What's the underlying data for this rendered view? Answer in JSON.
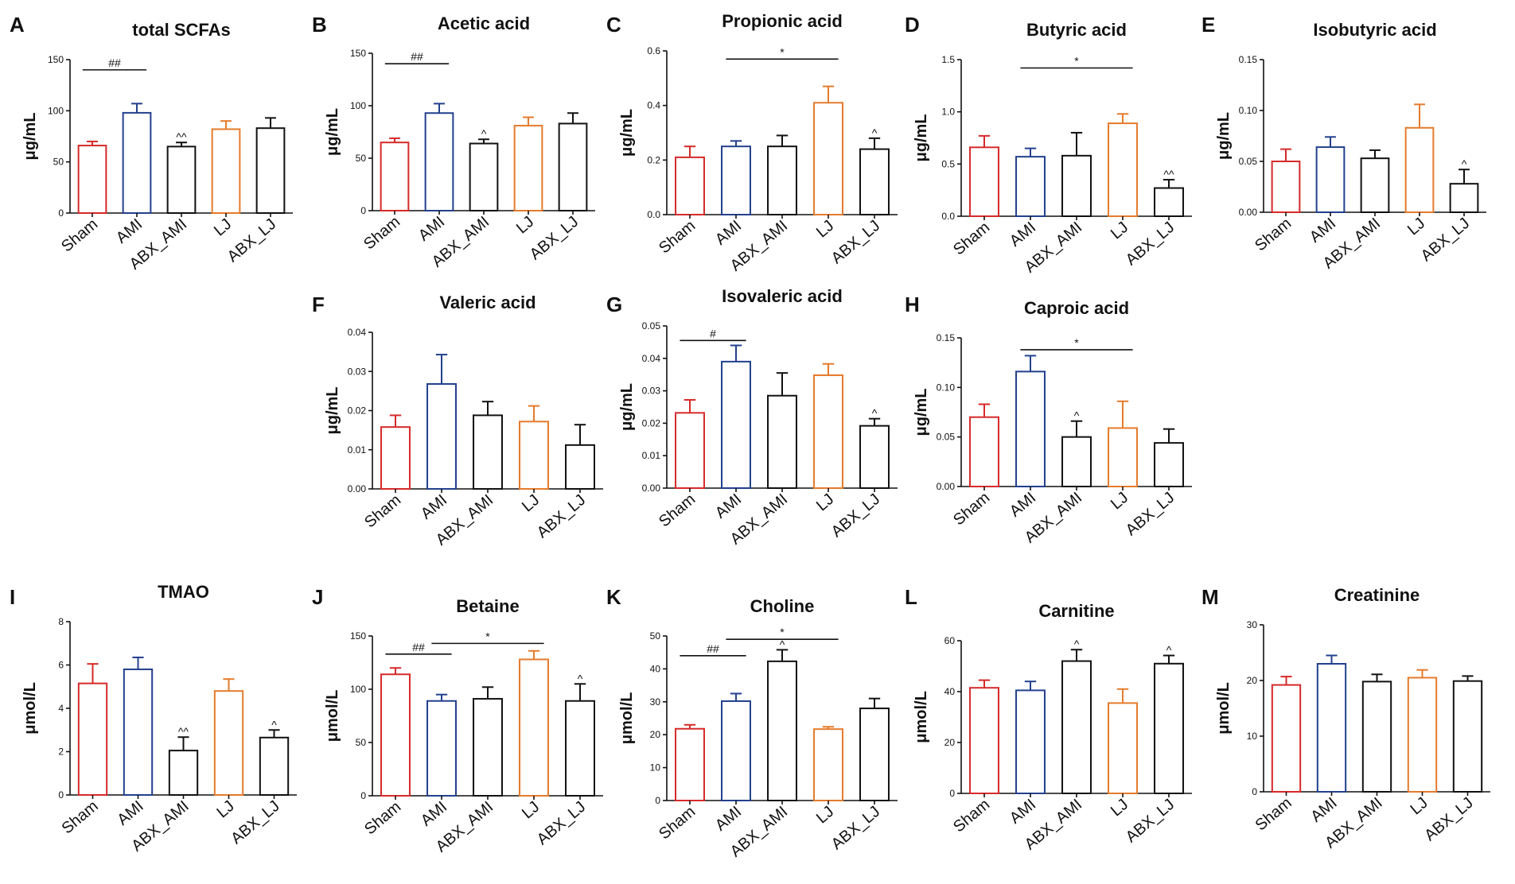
{
  "colors": {
    "Sham": "#d62a2a",
    "AMI": "#23408e",
    "ABX_AMI": "#111111",
    "LJ": "#e57b2c",
    "ABX_LJ": "#111111",
    "axis": "#111111"
  },
  "chart_data": [
    {
      "panel": "A",
      "type": "bar",
      "title": "total SCFAs",
      "ylabel": "μg/mL",
      "categories": [
        "Sham",
        "AMI",
        "ABX_AMI",
        "LJ",
        "ABX_LJ"
      ],
      "values": [
        66,
        98,
        65,
        82,
        83
      ],
      "errors": [
        4,
        9,
        4,
        8,
        10
      ],
      "ylim": [
        0,
        150
      ],
      "yticks": [
        "0",
        "50",
        "100",
        "150"
      ],
      "annotations": [
        {
          "text": "##",
          "from": 0,
          "to": 1,
          "level": 140
        },
        {
          "text": "^^",
          "at": 2
        }
      ]
    },
    {
      "panel": "B",
      "type": "bar",
      "title": "Acetic acid",
      "ylabel": "μg/mL",
      "categories": [
        "Sham",
        "AMI",
        "ABX_AMI",
        "LJ",
        "ABX_LJ"
      ],
      "values": [
        65,
        93,
        64,
        81,
        83
      ],
      "errors": [
        4,
        9,
        4,
        8,
        10
      ],
      "ylim": [
        0,
        150
      ],
      "yticks": [
        "0",
        "50",
        "100",
        "150"
      ],
      "annotations": [
        {
          "text": "##",
          "from": 0,
          "to": 1,
          "level": 140
        },
        {
          "text": "^",
          "at": 2
        }
      ]
    },
    {
      "panel": "C",
      "type": "bar",
      "title": "Propionic acid",
      "ylabel": "μg/mL",
      "categories": [
        "Sham",
        "AMI",
        "ABX_AMI",
        "LJ",
        "ABX_LJ"
      ],
      "values": [
        0.21,
        0.25,
        0.25,
        0.41,
        0.24
      ],
      "errors": [
        0.04,
        0.02,
        0.04,
        0.06,
        0.04
      ],
      "ylim": [
        0,
        0.6
      ],
      "yticks": [
        "0.0",
        "0.2",
        "0.4",
        "0.6"
      ],
      "annotations": [
        {
          "text": "*",
          "from": 1,
          "to": 3,
          "level": 0.57
        },
        {
          "text": "^",
          "at": 4
        }
      ]
    },
    {
      "panel": "D",
      "type": "bar",
      "title": "Butyric acid",
      "ylabel": "μg/mL",
      "categories": [
        "Sham",
        "AMI",
        "ABX_AMI",
        "LJ",
        "ABX_LJ"
      ],
      "values": [
        0.66,
        0.57,
        0.58,
        0.89,
        0.27
      ],
      "errors": [
        0.11,
        0.08,
        0.22,
        0.09,
        0.08
      ],
      "ylim": [
        0,
        1.5
      ],
      "yticks": [
        "0.0",
        "0.5",
        "1.0",
        "1.5"
      ],
      "annotations": [
        {
          "text": "*",
          "from": 1,
          "to": 3,
          "level": 1.42
        },
        {
          "text": "^^",
          "at": 4
        }
      ]
    },
    {
      "panel": "E",
      "type": "bar",
      "title": "Isobutyric acid",
      "ylabel": "μg/mL",
      "categories": [
        "Sham",
        "AMI",
        "ABX_AMI",
        "LJ",
        "ABX_LJ"
      ],
      "values": [
        0.05,
        0.064,
        0.053,
        0.083,
        0.028
      ],
      "errors": [
        0.012,
        0.01,
        0.008,
        0.023,
        0.014
      ],
      "ylim": [
        0,
        0.15
      ],
      "yticks": [
        "0.00",
        "0.05",
        "0.10",
        "0.15"
      ],
      "annotations": [
        {
          "text": "^",
          "at": 4
        }
      ]
    },
    {
      "panel": "F",
      "type": "bar",
      "title": "Valeric acid",
      "ylabel": "μg/mL",
      "categories": [
        "Sham",
        "AMI",
        "ABX_AMI",
        "LJ",
        "ABX_LJ"
      ],
      "values": [
        0.0158,
        0.0268,
        0.0188,
        0.0172,
        0.0112
      ],
      "errors": [
        0.003,
        0.0075,
        0.0035,
        0.004,
        0.0052
      ],
      "ylim": [
        0,
        0.04
      ],
      "yticks": [
        "0.00",
        "0.01",
        "0.02",
        "0.03",
        "0.04"
      ],
      "annotations": []
    },
    {
      "panel": "G",
      "type": "bar",
      "title": "Isovaleric acid",
      "ylabel": "μg/mL",
      "categories": [
        "Sham",
        "AMI",
        "ABX_AMI",
        "LJ",
        "ABX_LJ"
      ],
      "values": [
        0.0232,
        0.039,
        0.0285,
        0.0348,
        0.0192
      ],
      "errors": [
        0.004,
        0.005,
        0.007,
        0.0035,
        0.0022
      ],
      "ylim": [
        0,
        0.05
      ],
      "yticks": [
        "0.00",
        "0.01",
        "0.02",
        "0.03",
        "0.04",
        "0.05"
      ],
      "annotations": [
        {
          "text": "#",
          "from": 0,
          "to": 1,
          "level": 0.0455
        },
        {
          "text": "^",
          "at": 4
        }
      ]
    },
    {
      "panel": "H",
      "type": "bar",
      "title": "Caproic acid",
      "ylabel": "μg/mL",
      "categories": [
        "Sham",
        "AMI",
        "ABX_AMI",
        "LJ",
        "ABX_LJ"
      ],
      "values": [
        0.07,
        0.116,
        0.05,
        0.059,
        0.044
      ],
      "errors": [
        0.013,
        0.016,
        0.016,
        0.027,
        0.014
      ],
      "ylim": [
        0,
        0.15
      ],
      "yticks": [
        "0.00",
        "0.05",
        "0.10",
        "0.15"
      ],
      "annotations": [
        {
          "text": "*",
          "from": 1,
          "to": 3,
          "level": 0.138
        },
        {
          "text": "^",
          "at": 2
        }
      ]
    },
    {
      "panel": "I",
      "type": "bar",
      "title": "TMAO",
      "ylabel": "μmol/L",
      "categories": [
        "Sham",
        "AMI",
        "ABX_AMI",
        "LJ",
        "ABX_LJ"
      ],
      "values": [
        5.15,
        5.8,
        2.05,
        4.8,
        2.65
      ],
      "errors": [
        0.9,
        0.55,
        0.62,
        0.55,
        0.35
      ],
      "ylim": [
        0,
        8
      ],
      "yticks": [
        "0",
        "2",
        "4",
        "6",
        "8"
      ],
      "annotations": [
        {
          "text": "^^",
          "at": 2
        },
        {
          "text": "^",
          "at": 4
        }
      ]
    },
    {
      "panel": "J",
      "type": "bar",
      "title": "Betaine",
      "ylabel": "μmol/L",
      "categories": [
        "Sham",
        "AMI",
        "ABX_AMI",
        "LJ",
        "ABX_LJ"
      ],
      "values": [
        114,
        89,
        91,
        128,
        89
      ],
      "errors": [
        6,
        6,
        11,
        8,
        16
      ],
      "ylim": [
        0,
        150
      ],
      "yticks": [
        "0",
        "50",
        "100",
        "150"
      ],
      "annotations": [
        {
          "text": "##",
          "from": 0,
          "to": 1,
          "level": 133
        },
        {
          "text": "*",
          "from": 1,
          "to": 3,
          "level": 143
        },
        {
          "text": "^",
          "at": 4
        }
      ]
    },
    {
      "panel": "K",
      "type": "bar",
      "title": "Choline",
      "ylabel": "μmol/L",
      "categories": [
        "Sham",
        "AMI",
        "ABX_AMI",
        "LJ",
        "ABX_LJ"
      ],
      "values": [
        21.8,
        30.2,
        42.3,
        21.7,
        28
      ],
      "errors": [
        1.2,
        2.3,
        3.5,
        0.7,
        3
      ],
      "ylim": [
        0,
        50
      ],
      "yticks": [
        "0",
        "10",
        "20",
        "30",
        "40",
        "50"
      ],
      "annotations": [
        {
          "text": "##",
          "from": 0,
          "to": 1,
          "level": 44
        },
        {
          "text": "*",
          "from": 1,
          "to": 3,
          "level": 49
        },
        {
          "text": "^",
          "at": 2
        }
      ]
    },
    {
      "panel": "L",
      "type": "bar",
      "title": "Carnitine",
      "ylabel": "μmol/L",
      "categories": [
        "Sham",
        "AMI",
        "ABX_AMI",
        "LJ",
        "ABX_LJ"
      ],
      "values": [
        41.5,
        40.5,
        52,
        35.5,
        51
      ],
      "errors": [
        3,
        3.5,
        4.5,
        5.5,
        3.2
      ],
      "ylim": [
        0,
        60
      ],
      "yticks": [
        "0",
        "20",
        "40",
        "60"
      ],
      "annotations": [
        {
          "text": "^",
          "at": 2
        },
        {
          "text": "^",
          "at": 4
        }
      ]
    },
    {
      "panel": "M",
      "type": "bar",
      "title": "Creatinine",
      "ylabel": "μmol/L",
      "categories": [
        "Sham",
        "AMI",
        "ABX_AMI",
        "LJ",
        "ABX_LJ"
      ],
      "values": [
        19.2,
        23,
        19.8,
        20.5,
        19.9
      ],
      "errors": [
        1.5,
        1.5,
        1.3,
        1.4,
        0.9
      ],
      "ylim": [
        0,
        30
      ],
      "yticks": [
        "0",
        "10",
        "20",
        "30"
      ],
      "annotations": []
    }
  ]
}
